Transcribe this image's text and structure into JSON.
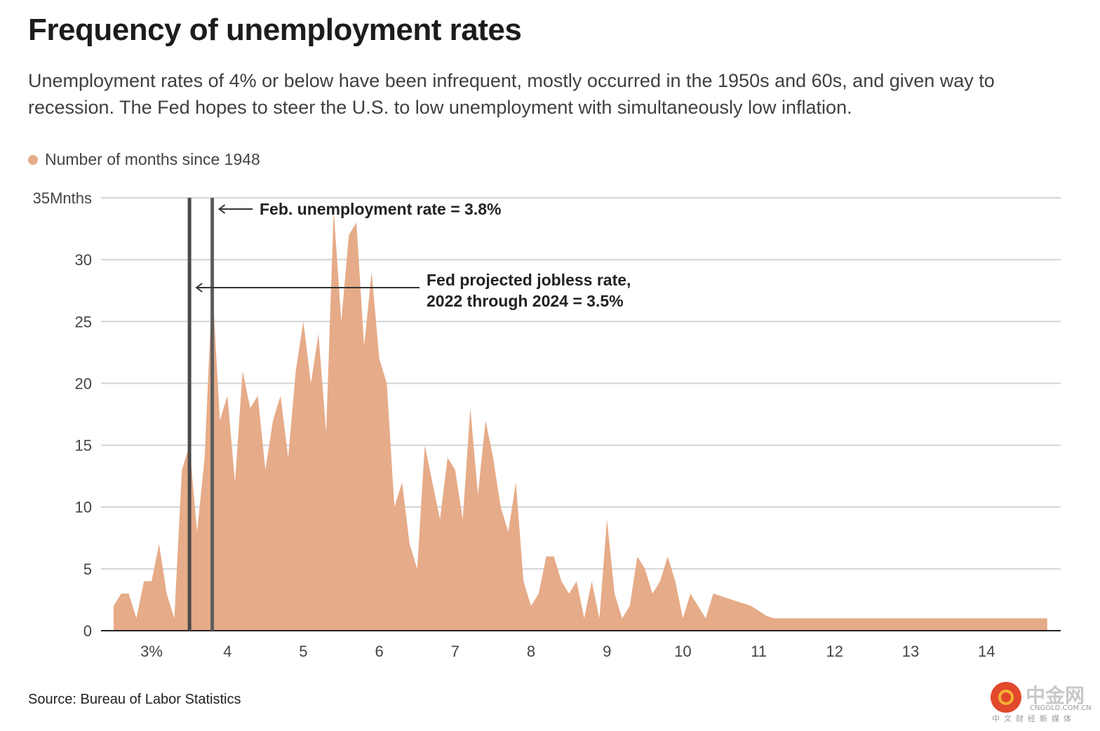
{
  "header": {
    "title": "Frequency of unemployment rates",
    "subtitle": "Unemployment rates of 4% or below have been infrequent, mostly occurred in the 1950s and 60s, and given way to recession. The Fed hopes to steer the U.S. to low unemployment with simultaneously low inflation."
  },
  "legend": {
    "label": "Number of months since 1948",
    "color": "#e6ab88"
  },
  "footer": {
    "source": "Source: Bureau of Labor Statistics"
  },
  "watermark": {
    "name": "中金网",
    "domain": "CNGOLD.COM.CN",
    "tagline": "中文财经新媒体"
  },
  "chart_data": {
    "type": "area",
    "title": "Frequency of unemployment rates",
    "xlabel": "",
    "ylabel": "",
    "xlim": [
      2.5,
      15.0
    ],
    "ylim": [
      0,
      35
    ],
    "grid": true,
    "fill_color": "#e6ab88",
    "x_ticks": [
      {
        "value": 3,
        "label": "3%"
      },
      {
        "value": 4,
        "label": "4"
      },
      {
        "value": 5,
        "label": "5"
      },
      {
        "value": 6,
        "label": "6"
      },
      {
        "value": 7,
        "label": "7"
      },
      {
        "value": 8,
        "label": "8"
      },
      {
        "value": 9,
        "label": "9"
      },
      {
        "value": 10,
        "label": "10"
      },
      {
        "value": 11,
        "label": "11"
      },
      {
        "value": 12,
        "label": "12"
      },
      {
        "value": 13,
        "label": "13"
      },
      {
        "value": 14,
        "label": "14"
      }
    ],
    "y_ticks": [
      {
        "value": 0,
        "label": "0"
      },
      {
        "value": 5,
        "label": "5"
      },
      {
        "value": 10,
        "label": "10"
      },
      {
        "value": 15,
        "label": "15"
      },
      {
        "value": 20,
        "label": "20"
      },
      {
        "value": 25,
        "label": "25"
      },
      {
        "value": 30,
        "label": "30"
      },
      {
        "value": 35,
        "label": "35Mnths"
      }
    ],
    "series": [
      {
        "x": [
          2.5,
          2.6,
          2.7,
          2.8,
          2.9,
          3.0,
          3.1,
          3.2,
          3.3,
          3.4,
          3.5,
          3.6,
          3.7,
          3.8,
          3.9,
          4.0,
          4.1,
          4.2,
          4.3,
          4.4,
          4.5,
          4.6,
          4.7,
          4.8,
          4.9,
          5.0,
          5.1,
          5.2,
          5.3,
          5.4,
          5.5,
          5.6,
          5.7,
          5.8,
          5.9,
          6.0,
          6.1,
          6.2,
          6.3,
          6.4,
          6.5,
          6.6,
          6.7,
          6.8,
          6.9,
          7.0,
          7.1,
          7.2,
          7.3,
          7.4,
          7.5,
          7.6,
          7.7,
          7.8,
          7.9,
          8.0,
          8.1,
          8.2,
          8.3,
          8.4,
          8.5,
          8.6,
          8.7,
          8.8,
          8.9,
          9.0,
          9.1,
          9.2,
          9.3,
          9.4,
          9.5,
          9.6,
          9.7,
          9.8,
          9.9,
          10.0,
          10.1,
          10.2,
          10.3,
          10.4,
          10.5,
          10.6,
          10.7,
          10.8,
          10.9,
          11.0,
          11.1,
          11.2,
          11.3,
          11.4,
          11.5,
          11.6,
          11.7,
          11.8,
          11.9,
          12.0,
          12.1,
          12.2,
          12.3,
          12.4,
          12.5,
          12.6,
          12.7,
          12.8,
          12.9,
          13.0,
          13.1,
          13.2,
          13.3,
          13.4,
          13.5,
          13.6,
          13.7,
          13.8,
          13.9,
          14.0,
          14.1,
          14.2,
          14.3,
          14.4,
          14.5,
          14.6,
          14.7,
          14.8
        ],
        "values": [
          2,
          3,
          3,
          1,
          4,
          4,
          7,
          3,
          1,
          13,
          15,
          8,
          14,
          28,
          17,
          19,
          12,
          21,
          18,
          19,
          13,
          17,
          19,
          14,
          21,
          25,
          20,
          24,
          16,
          34,
          25,
          32,
          33,
          23,
          29,
          22,
          20,
          10,
          12,
          7,
          5,
          15,
          12,
          9,
          14,
          13,
          9,
          18,
          11,
          17,
          14,
          10,
          8,
          12,
          4,
          2,
          3,
          6,
          6,
          4,
          3,
          4,
          1,
          4,
          1,
          9,
          3,
          1,
          2,
          6,
          5,
          3,
          4,
          6,
          4,
          1,
          3,
          2,
          1,
          3,
          2.8,
          2.6,
          2.4,
          2.2,
          2,
          1.6,
          1.2,
          1,
          1,
          1,
          1,
          1,
          1,
          1,
          1,
          1,
          1,
          1,
          1,
          1,
          1,
          1,
          1,
          1,
          1,
          1,
          1,
          1,
          1,
          1,
          1,
          1,
          1,
          1,
          1,
          1,
          1,
          1,
          1,
          1,
          1,
          1,
          1,
          1
        ]
      }
    ],
    "reference_lines": [
      {
        "x": 3.5,
        "label_lines": [
          "Fed projected jobless rate,",
          "2022 through 2024 = 3.5%"
        ]
      },
      {
        "x": 3.8,
        "label_lines": [
          "Feb. unemployment rate = 3.8%"
        ]
      }
    ]
  }
}
